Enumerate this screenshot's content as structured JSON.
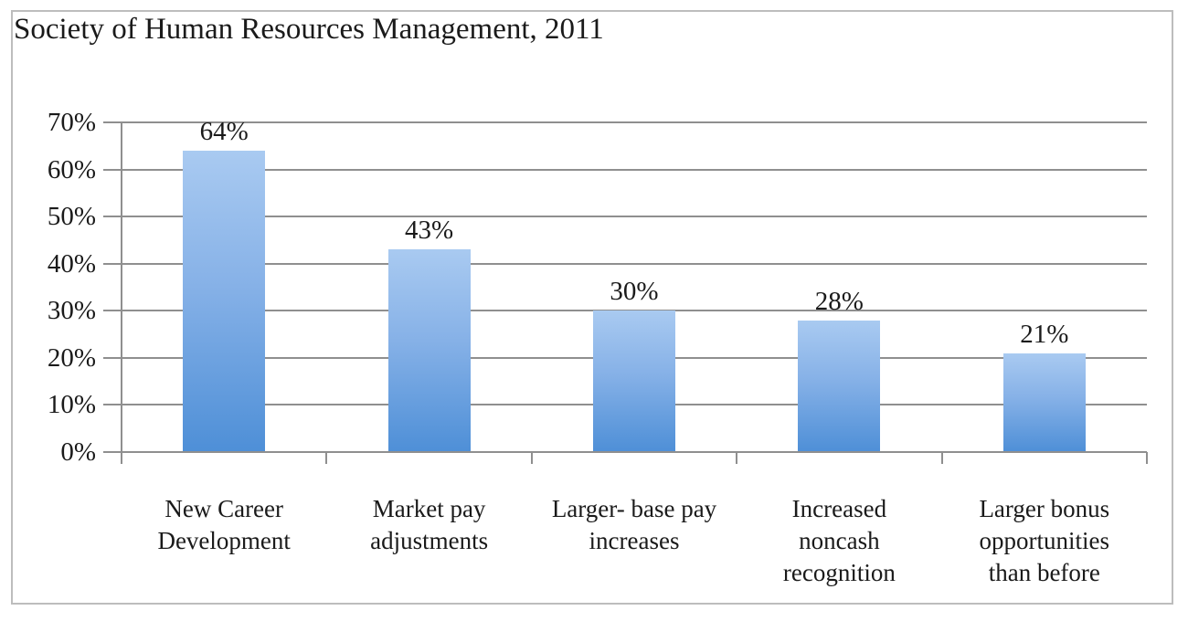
{
  "chart_data": {
    "type": "bar",
    "title": "Society of Human Resources Management, 2011",
    "categories": [
      "New Career\nDevelopment",
      "Market pay\nadjustments",
      "Larger- base pay\nincreases",
      "Increased\nnoncash\nrecognition",
      "Larger bonus\nopportunities\nthan before"
    ],
    "values": [
      64,
      43,
      30,
      28,
      21
    ],
    "value_labels": [
      "64%",
      "43%",
      "30%",
      "28%",
      "21%"
    ],
    "ylim": [
      0,
      70
    ],
    "ytick_step": 10,
    "ytick_labels": [
      "0%",
      "10%",
      "20%",
      "30%",
      "40%",
      "50%",
      "60%",
      "70%"
    ],
    "xlabel": "",
    "ylabel": "",
    "grid": true,
    "legend": false,
    "colors": {
      "bar_top": "#a9caf1",
      "bar_mid": "#86b1e7",
      "bar_bottom": "#4e8fd7",
      "gridline": "#8f8f8f",
      "text": "#1a1a1a",
      "frame_border": "#bdbdbd",
      "background": "#ffffff"
    }
  }
}
